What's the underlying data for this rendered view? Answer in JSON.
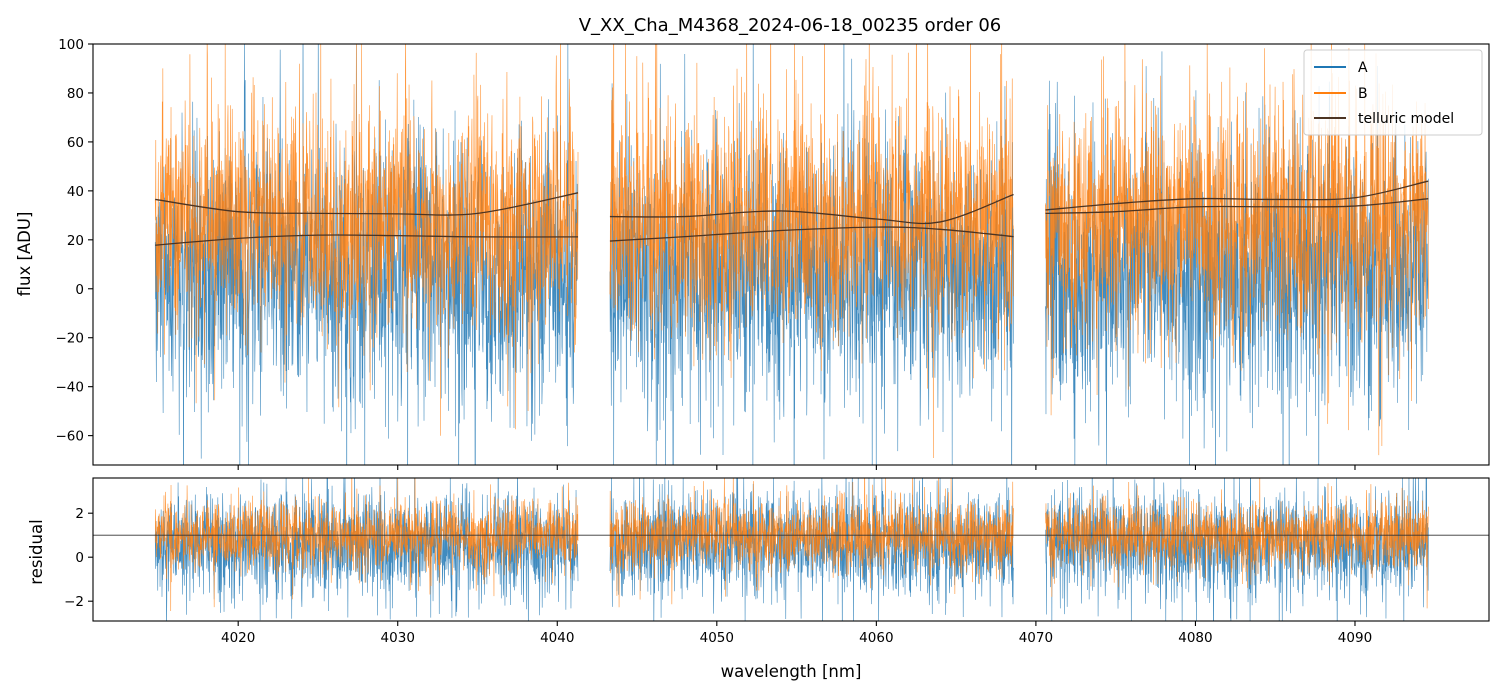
{
  "chart_data": [
    {
      "type": "line",
      "panel": "top",
      "title": "V_XX_Cha_M4368_2024-06-18_00235  order 06",
      "xlabel": "",
      "ylabel": "flux [ADU]",
      "xlim": [
        4010.9,
        4098.4
      ],
      "ylim": [
        -72,
        100
      ],
      "xticks": [
        4020,
        4030,
        4040,
        4050,
        4060,
        4070,
        4080,
        4090
      ],
      "xtick_labels": [
        "",
        "",
        "",
        "",
        "",
        "",
        "",
        ""
      ],
      "yticks": [
        -60,
        -40,
        -20,
        0,
        20,
        40,
        60,
        80,
        100
      ],
      "ytick_labels": [
        "−60",
        "−40",
        "−20",
        "0",
        "20",
        "40",
        "60",
        "80",
        "100"
      ],
      "legend": {
        "location": "upper right",
        "entries": [
          "A",
          "B",
          "telluric model"
        ]
      },
      "segments": [
        {
          "start": 4014.8,
          "end": 4041.3
        },
        {
          "start": 4043.3,
          "end": 4068.6
        },
        {
          "start": 4070.6,
          "end": 4094.6
        }
      ],
      "series": [
        {
          "name": "A",
          "color": "#1f77b4",
          "approx_center": 6,
          "approx_spread": 27
        },
        {
          "name": "B",
          "color": "#ff7f0e",
          "approx_center": 28,
          "approx_spread": 24
        },
        {
          "name": "telluric model",
          "color": "#4d3422",
          "curves": [
            {
              "x": [
                4014.8,
                4020,
                4025,
                4030,
                4035,
                4041.3
              ],
              "y": [
                36.5,
                31.5,
                30.8,
                30.6,
                30.8,
                39.2
              ]
            },
            {
              "x": [
                4014.8,
                4020,
                4025,
                4030,
                4035,
                4041.3
              ],
              "y": [
                17.8,
                20.6,
                21.9,
                21.7,
                21.2,
                21.2
              ]
            },
            {
              "x": [
                4043.3,
                4048,
                4054,
                4060,
                4064,
                4068.6
              ],
              "y": [
                29.5,
                29.5,
                31.8,
                28.5,
                27.3,
                38.5
              ]
            },
            {
              "x": [
                4043.3,
                4048,
                4054,
                4060,
                4064,
                4068.6
              ],
              "y": [
                19.5,
                21.3,
                23.8,
                25.2,
                24.3,
                21.3
              ]
            },
            {
              "x": [
                4070.6,
                4075,
                4080,
                4085,
                4090,
                4094.6
              ],
              "y": [
                32.2,
                34.8,
                36.8,
                36.5,
                37.2,
                44.0
              ]
            },
            {
              "x": [
                4070.6,
                4075,
                4080,
                4085,
                4090,
                4094.6
              ],
              "y": [
                30.8,
                31.5,
                33.5,
                33.5,
                33.8,
                36.8
              ]
            }
          ]
        }
      ]
    },
    {
      "type": "line",
      "panel": "bottom",
      "xlabel": "wavelength [nm]",
      "ylabel": "residual",
      "xlim": [
        4010.9,
        4098.4
      ],
      "ylim": [
        -2.9,
        3.6
      ],
      "xticks": [
        4020,
        4030,
        4040,
        4050,
        4060,
        4070,
        4080,
        4090
      ],
      "xtick_labels": [
        "4020",
        "4030",
        "4040",
        "4050",
        "4060",
        "4070",
        "4080",
        "4090"
      ],
      "yticks": [
        -2,
        0,
        2
      ],
      "ytick_labels": [
        "−2",
        "0",
        "2"
      ],
      "reference_line": 1,
      "series": [
        {
          "name": "A",
          "color": "#1f77b4",
          "approx_center": 0.6,
          "approx_spread": 1.2
        },
        {
          "name": "B",
          "color": "#ff7f0e",
          "approx_center": 1.0,
          "approx_spread": 0.8
        }
      ]
    }
  ]
}
